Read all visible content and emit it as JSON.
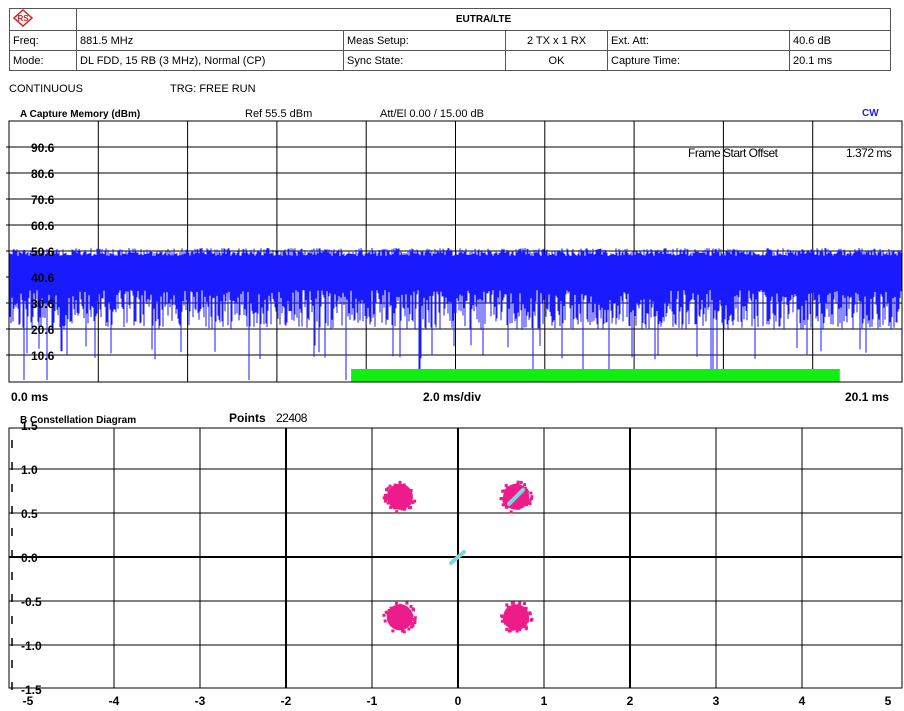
{
  "header": {
    "title": "EUTRA/LTE",
    "freq_label": "Freq:",
    "freq_value": "881.5 MHz",
    "meas_setup_label": "Meas Setup:",
    "meas_setup_value": "2 TX x 1 RX",
    "ext_att_label": "Ext. Att:",
    "ext_att_value": "40.6 dB",
    "mode_label": "Mode:",
    "mode_value": "DL FDD, 15 RB (3 MHz), Normal (CP)",
    "sync_state_label": "Sync State:",
    "sync_state_value": "OK",
    "capture_time_label": "Capture Time:",
    "capture_time_value": "20.1 ms"
  },
  "status": {
    "sweep_mode": "CONTINUOUS",
    "trigger": "TRG: FREE RUN"
  },
  "capture": {
    "title": "A Capture Memory (dBm)",
    "ref": "Ref   55.5 dBm",
    "att": "Att/El 0.00 / 15.00 dB",
    "cw": "CW",
    "frame_offset_label": "Frame Start Offset",
    "frame_offset_value": "1.372 ms",
    "x_start": "0.0 ms",
    "x_div": "2.0 ms/div",
    "x_end": "20.1 ms",
    "y_ticks": [
      "90.6",
      "80.6",
      "70.6",
      "60.6",
      "50.6",
      "40.6",
      "30.6",
      "20.6",
      "10.6"
    ],
    "trace_color": "#1a1aff",
    "bar_color": "#11ee11",
    "bar_start_ms": 7.7,
    "bar_end_ms": 18.7
  },
  "constellation": {
    "title": "B Constellation Diagram",
    "points_label": "Points",
    "points_value": "22408",
    "y_ticks": [
      "1.5",
      "1.0",
      "0.5",
      "0.0",
      "-0.5",
      "-1.0",
      "-1.5"
    ],
    "x_ticks": [
      "-5",
      "-4",
      "-3",
      "-2",
      "-1",
      "0",
      "1",
      "2",
      "3",
      "4",
      "5"
    ],
    "qpsk_color": "#ee1b8a",
    "ref_color": "#7fd6d6",
    "clusters": [
      {
        "i": -0.7,
        "q": 0.7
      },
      {
        "i": 0.7,
        "q": 0.7
      },
      {
        "i": -0.7,
        "q": -0.7
      },
      {
        "i": 0.7,
        "q": -0.7
      }
    ]
  }
}
